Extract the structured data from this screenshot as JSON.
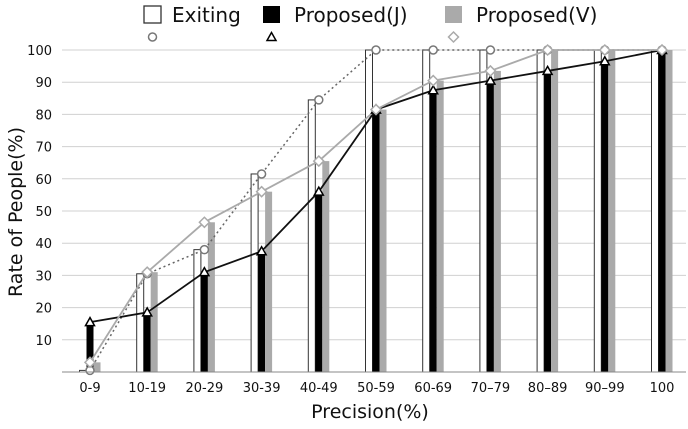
{
  "chart_data": {
    "type": "bar",
    "title": "",
    "xlabel": "Precision(%)",
    "ylabel": "Rate of People(%)",
    "ylim": [
      0,
      100
    ],
    "yticks": [
      10,
      20,
      30,
      40,
      50,
      60,
      70,
      80,
      90,
      100
    ],
    "categories": [
      "0-9",
      "10-19",
      "20-29",
      "30-39",
      "40-49",
      "50-59",
      "60-69",
      "70–79",
      "80–89",
      "90–99",
      "100"
    ],
    "series": [
      {
        "name": "Exiting",
        "fill": "#ffffff",
        "stroke": "#333333",
        "marker": "circle",
        "line_color": "#666666",
        "line_style": "dotted",
        "values": [
          0.5,
          30.5,
          38,
          61.5,
          84.5,
          100,
          100,
          100,
          100,
          100,
          100
        ]
      },
      {
        "name": "Proposed(J)",
        "fill": "#000000",
        "stroke": "#000000",
        "marker": "triangle",
        "line_color": "#111111",
        "line_style": "solid",
        "values": [
          15.5,
          18.5,
          31,
          37.5,
          56,
          81.5,
          87.5,
          90.5,
          93.5,
          96.5,
          100
        ]
      },
      {
        "name": "Proposed(V)",
        "fill": "#aaaaaa",
        "stroke": "#aaaaaa",
        "marker": "diamond",
        "line_color": "#aaaaaa",
        "line_style": "solid",
        "values": [
          3,
          31,
          46.5,
          56,
          65.5,
          81.5,
          90.5,
          93.5,
          100,
          100,
          100
        ]
      }
    ],
    "legend_position": "top",
    "grid": "horizontal"
  }
}
